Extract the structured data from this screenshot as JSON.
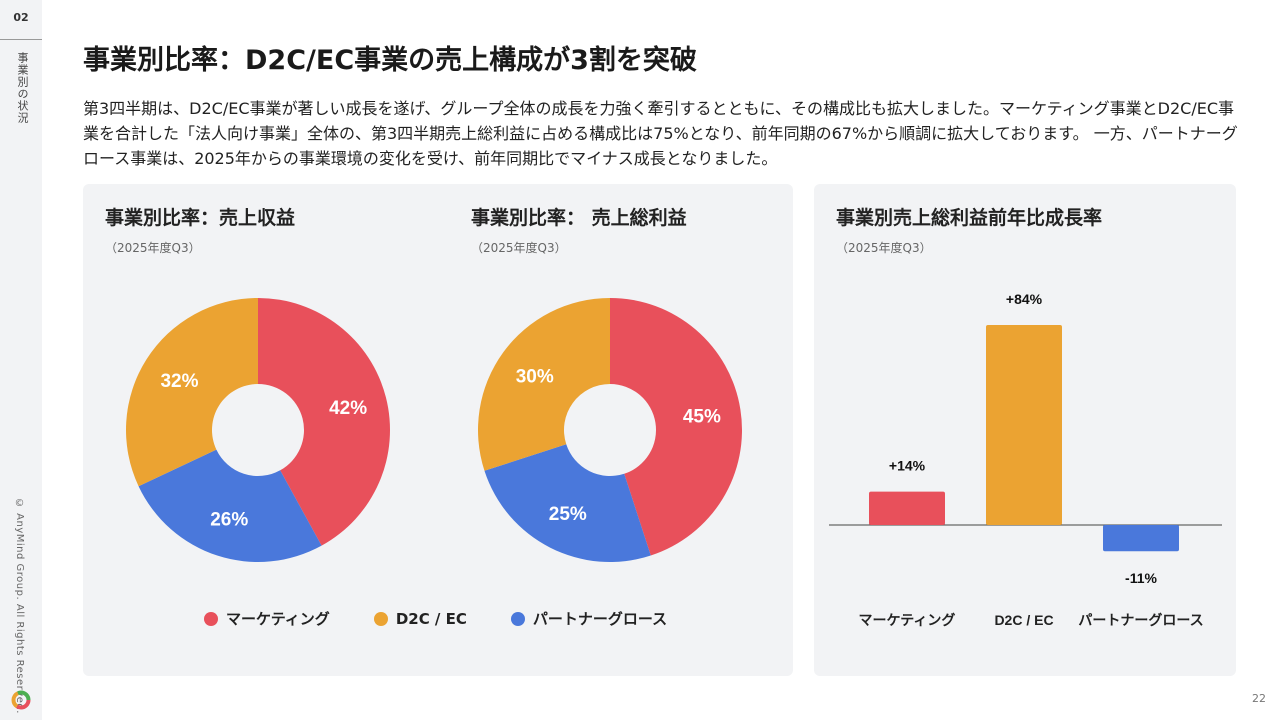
{
  "sidebar": {
    "slide_number": "02",
    "section": "事業別の状況",
    "copyright": "© AnyMind Group. All Rights Reserved."
  },
  "header": {
    "title": "事業別比率：D2C/EC事業の売上構成が3割を突破",
    "lead": "第3四半期は、D2C/EC事業が著しい成長を遂げ、グループ全体の成長を力強く牽引するとともに、その構成比も拡大しました。マーケティング事業とD2C/EC事業を合計した「法人向け事業」全体の、第3四半期売上総利益に占める構成比は75%となり、前年同期の67%から順調に拡大しております。 一方、パートナーグロース事業は、2025年からの事業環境の変化を受け、前年同期比でマイナス成長となりました。"
  },
  "colors": {
    "marketing": "#e8505b",
    "d2c": "#eba332",
    "partner": "#4a78db",
    "panel_bg": "#f2f3f5"
  },
  "legend": [
    {
      "label": "マーケティング",
      "color": "#e8505b"
    },
    {
      "label": "D2C / EC",
      "color": "#eba332"
    },
    {
      "label": "パートナーグロース",
      "color": "#4a78db"
    }
  ],
  "chart_data": [
    {
      "type": "pie",
      "title": "事業別比率：売上収益",
      "subtitle": "（2025年度Q3）",
      "categories": [
        "マーケティング",
        "パートナーグロース",
        "D2C / EC"
      ],
      "values": [
        42,
        26,
        32
      ],
      "labels": [
        "42%",
        "26%",
        "32%"
      ],
      "colors": [
        "#e8505b",
        "#4a78db",
        "#eba332"
      ],
      "donut": true
    },
    {
      "type": "pie",
      "title": "事業別比率： 売上総利益",
      "subtitle": "（2025年度Q3）",
      "categories": [
        "マーケティング",
        "パートナーグロース",
        "D2C / EC"
      ],
      "values": [
        45,
        25,
        30
      ],
      "labels": [
        "45%",
        "25%",
        "30%"
      ],
      "colors": [
        "#e8505b",
        "#4a78db",
        "#eba332"
      ],
      "donut": true
    },
    {
      "type": "bar",
      "title": "事業別売上総利益前年比成長率",
      "subtitle": "（2025年度Q3）",
      "categories": [
        "マーケティング",
        "D2C / EC",
        "パートナーグロース"
      ],
      "values": [
        14,
        84,
        -11
      ],
      "labels": [
        "+14%",
        "+84%",
        "-11%"
      ],
      "colors": [
        "#e8505b",
        "#eba332",
        "#4a78db"
      ],
      "ylim": [
        -11,
        84
      ]
    }
  ],
  "page_number": "22"
}
